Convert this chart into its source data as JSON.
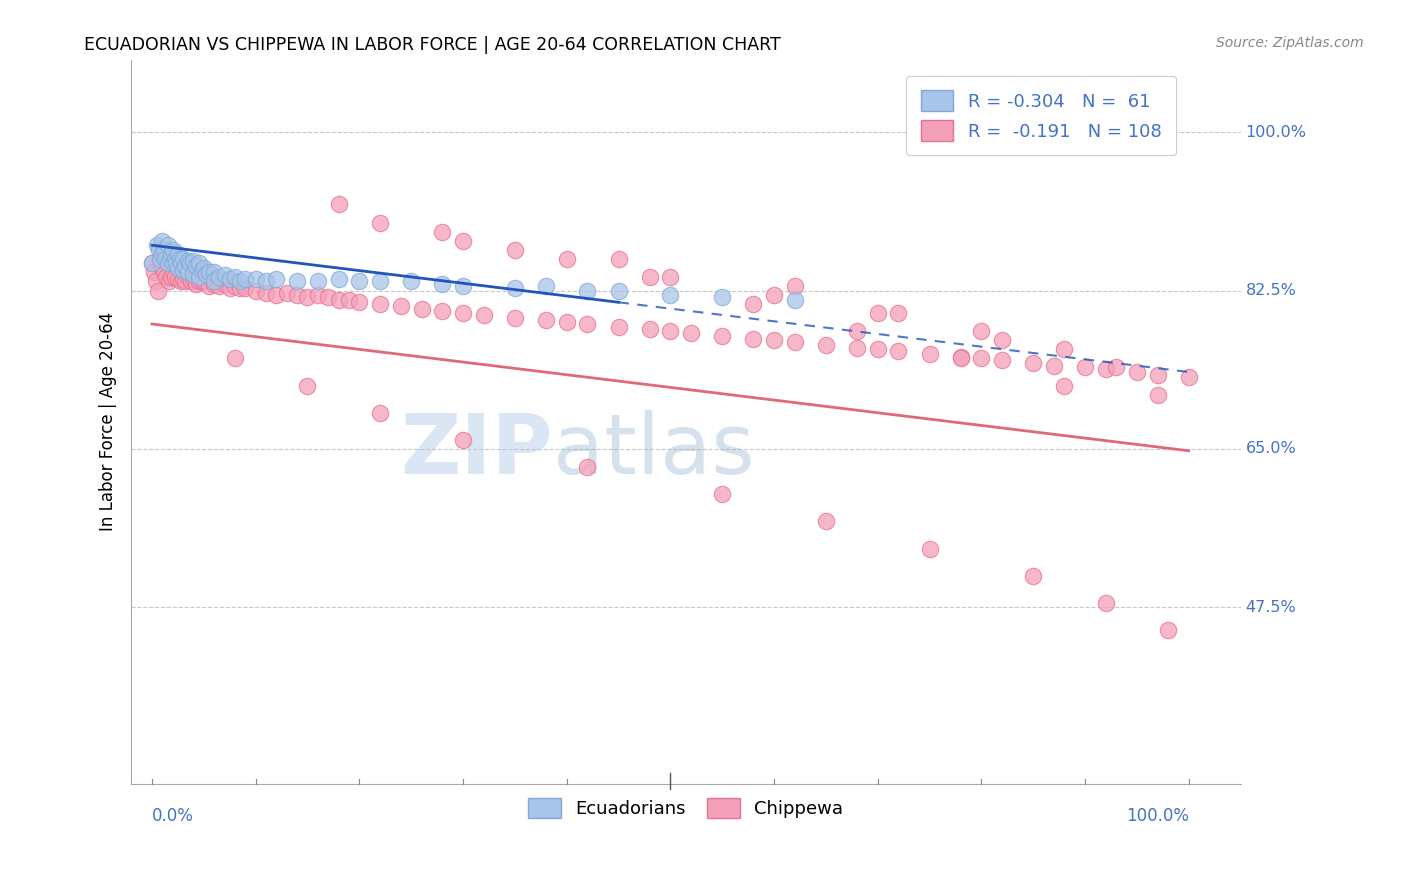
{
  "title": "ECUADORIAN VS CHIPPEWA IN LABOR FORCE | AGE 20-64 CORRELATION CHART",
  "source": "Source: ZipAtlas.com",
  "ylabel": "In Labor Force | Age 20-64",
  "watermark_zip": "ZIP",
  "watermark_atlas": "atlas",
  "blue_color": "#a8c4e8",
  "blue_edge": "#80a8d8",
  "pink_color": "#f4a0b8",
  "pink_edge": "#e87090",
  "blue_line_color": "#2255bb",
  "pink_line_color": "#e06878",
  "blue_line_start_y": 0.875,
  "blue_line_end_y": 0.735,
  "blue_line_x_solid_end": 0.45,
  "pink_line_start_y": 0.788,
  "pink_line_end_y": 0.648,
  "ytick_values": [
    0.475,
    0.65,
    0.825,
    1.0
  ],
  "ytick_labels": [
    "47.5%",
    "65.0%",
    "82.5%",
    "100.0%"
  ],
  "xlim": [
    -0.02,
    1.05
  ],
  "ylim": [
    0.28,
    1.08
  ],
  "legend_labels": [
    "R = -0.304   N =  61",
    "R =  -0.191   N = 108"
  ],
  "bottom_legend_labels": [
    "Ecuadorians",
    "Chippewa"
  ],
  "blue_x": [
    0.0,
    0.005,
    0.007,
    0.008,
    0.01,
    0.01,
    0.012,
    0.013,
    0.015,
    0.015,
    0.017,
    0.018,
    0.02,
    0.02,
    0.022,
    0.023,
    0.025,
    0.025,
    0.027,
    0.028,
    0.03,
    0.03,
    0.032,
    0.035,
    0.035,
    0.037,
    0.04,
    0.04,
    0.042,
    0.045,
    0.045,
    0.048,
    0.05,
    0.052,
    0.055,
    0.06,
    0.06,
    0.065,
    0.07,
    0.075,
    0.08,
    0.085,
    0.09,
    0.1,
    0.11,
    0.12,
    0.14,
    0.16,
    0.18,
    0.2,
    0.22,
    0.25,
    0.28,
    0.3,
    0.35,
    0.38,
    0.42,
    0.45,
    0.5,
    0.55,
    0.62
  ],
  "blue_y": [
    0.855,
    0.875,
    0.87,
    0.86,
    0.88,
    0.865,
    0.87,
    0.86,
    0.875,
    0.855,
    0.86,
    0.865,
    0.87,
    0.855,
    0.86,
    0.855,
    0.865,
    0.85,
    0.86,
    0.855,
    0.86,
    0.848,
    0.852,
    0.858,
    0.845,
    0.855,
    0.858,
    0.843,
    0.852,
    0.855,
    0.84,
    0.848,
    0.85,
    0.843,
    0.845,
    0.845,
    0.835,
    0.84,
    0.842,
    0.838,
    0.84,
    0.835,
    0.838,
    0.838,
    0.836,
    0.838,
    0.835,
    0.835,
    0.838,
    0.835,
    0.835,
    0.836,
    0.832,
    0.83,
    0.828,
    0.83,
    0.825,
    0.825,
    0.82,
    0.818,
    0.815
  ],
  "pink_x": [
    0.0,
    0.002,
    0.004,
    0.006,
    0.008,
    0.01,
    0.012,
    0.014,
    0.016,
    0.018,
    0.02,
    0.022,
    0.025,
    0.028,
    0.03,
    0.032,
    0.035,
    0.038,
    0.04,
    0.042,
    0.045,
    0.048,
    0.05,
    0.055,
    0.06,
    0.065,
    0.07,
    0.075,
    0.08,
    0.085,
    0.09,
    0.1,
    0.11,
    0.12,
    0.13,
    0.14,
    0.15,
    0.16,
    0.17,
    0.18,
    0.19,
    0.2,
    0.22,
    0.24,
    0.26,
    0.28,
    0.3,
    0.32,
    0.35,
    0.38,
    0.4,
    0.42,
    0.45,
    0.48,
    0.5,
    0.52,
    0.55,
    0.58,
    0.6,
    0.62,
    0.65,
    0.68,
    0.7,
    0.72,
    0.75,
    0.78,
    0.8,
    0.82,
    0.85,
    0.87,
    0.9,
    0.92,
    0.95,
    0.97,
    1.0,
    0.08,
    0.15,
    0.22,
    0.3,
    0.42,
    0.55,
    0.65,
    0.75,
    0.85,
    0.92,
    0.98,
    0.3,
    0.4,
    0.5,
    0.6,
    0.7,
    0.8,
    0.88,
    0.22,
    0.35,
    0.48,
    0.58,
    0.68,
    0.78,
    0.88,
    0.18,
    0.28,
    0.45,
    0.62,
    0.72,
    0.82,
    0.93,
    0.97
  ],
  "pink_y": [
    0.855,
    0.845,
    0.835,
    0.825,
    0.855,
    0.85,
    0.845,
    0.84,
    0.835,
    0.84,
    0.845,
    0.84,
    0.838,
    0.835,
    0.838,
    0.835,
    0.84,
    0.835,
    0.838,
    0.832,
    0.836,
    0.835,
    0.835,
    0.83,
    0.832,
    0.83,
    0.832,
    0.828,
    0.83,
    0.828,
    0.828,
    0.825,
    0.822,
    0.82,
    0.822,
    0.82,
    0.818,
    0.82,
    0.818,
    0.815,
    0.815,
    0.812,
    0.81,
    0.808,
    0.805,
    0.802,
    0.8,
    0.798,
    0.795,
    0.792,
    0.79,
    0.788,
    0.785,
    0.782,
    0.78,
    0.778,
    0.775,
    0.772,
    0.77,
    0.768,
    0.765,
    0.762,
    0.76,
    0.758,
    0.755,
    0.752,
    0.75,
    0.748,
    0.745,
    0.742,
    0.74,
    0.738,
    0.735,
    0.732,
    0.73,
    0.75,
    0.72,
    0.69,
    0.66,
    0.63,
    0.6,
    0.57,
    0.54,
    0.51,
    0.48,
    0.45,
    0.88,
    0.86,
    0.84,
    0.82,
    0.8,
    0.78,
    0.76,
    0.9,
    0.87,
    0.84,
    0.81,
    0.78,
    0.75,
    0.72,
    0.92,
    0.89,
    0.86,
    0.83,
    0.8,
    0.77,
    0.74,
    0.71
  ]
}
